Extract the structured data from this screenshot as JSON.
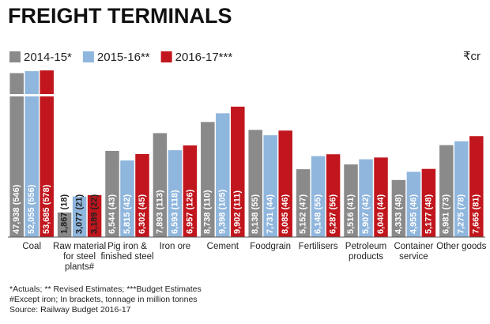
{
  "chart_data": {
    "type": "bar",
    "title": "FREIGHT TERMINALS",
    "unit_label": "₹cr",
    "categories": [
      "Coal",
      "Raw material for steel plants#",
      "Pig iron & finished steel",
      "Iron ore",
      "Cement",
      "Foodgrain",
      "Fertilisers",
      "Petroleum products",
      "Container service",
      "Other goods"
    ],
    "series": [
      {
        "name": "2014-15*",
        "color": "#8a8a8a",
        "values": [
          47938,
          1867,
          6544,
          7893,
          8738,
          8138,
          5152,
          5516,
          4333,
          6981
        ],
        "value_labels": [
          "47,938 (546)",
          "1,867 (18)",
          "6,544 (43)",
          "7,893 (113)",
          "8,738 (110)",
          "8,138 (55)",
          "5,152 (47)",
          "5,516 (41)",
          "4,333 (48)",
          "6,981 (73)"
        ]
      },
      {
        "name": "2015-16**",
        "color": "#8fb6dd",
        "values": [
          52055,
          3077,
          5815,
          6593,
          9398,
          7731,
          6148,
          5907,
          4955,
          7275
        ],
        "value_labels": [
          "52,055 (556)",
          "3,077 (21)",
          "5,815 (42)",
          "6,593 (118)",
          "9,398 (105)",
          "7,731 (44)",
          "6,148 (55)",
          "5,907 (42)",
          "4,955 (46)",
          "7,275 (78)"
        ]
      },
      {
        "name": "2016-17***",
        "color": "#c1161d",
        "values": [
          53685,
          3189,
          6302,
          6957,
          9902,
          8085,
          6287,
          6040,
          5177,
          7665
        ],
        "value_labels": [
          "53,685 (578)",
          "3,189 (22)",
          "6,302 (45)",
          "6,957 (126)",
          "9,902 (111)",
          "8,085 (46)",
          "6,287 (56)",
          "6,040 (44)",
          "5,177 (48)",
          "7,665 (81)"
        ]
      }
    ],
    "ylim": [
      0,
      10500
    ],
    "axis_break": true,
    "footnotes": [
      "*Actuals; ** Revised Estimates; ***Budget Estimates",
      "#Except iron; In brackets, tonnage in million tonnes",
      "Source: Railway Budget 2016-17"
    ]
  }
}
